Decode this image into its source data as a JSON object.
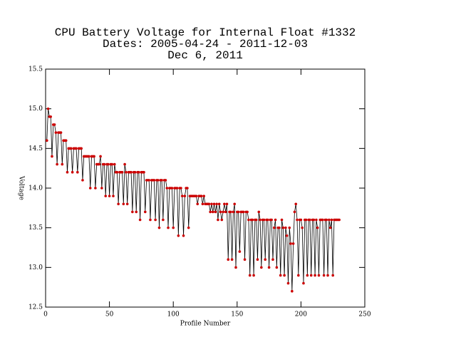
{
  "chart_data": {
    "type": "line",
    "title": [
      "CPU Battery Voltage for Internal Float #1332",
      "Dates:  2005-04-24 -  2011-12-03",
      "Dec  6, 2011"
    ],
    "x_label": "Profile Number",
    "y_label": "Voltage",
    "xlim": [
      0,
      250
    ],
    "xticks": [
      0,
      50,
      100,
      150,
      200,
      250
    ],
    "ylim": [
      12.5,
      15.5
    ],
    "yticks": [
      12.5,
      {
        "value": 13,
        "label": "13.0"
      },
      13.5,
      {
        "value": 14,
        "label": "14.0"
      },
      14.5,
      {
        "value": 15,
        "label": "15.0"
      },
      15.5
    ],
    "series": [
      {
        "name": "Voltage",
        "color": "#000000",
        "marker_color": "#cc0000",
        "x": [
          1,
          2,
          3,
          4,
          5,
          6,
          7,
          8,
          9,
          10,
          11,
          12,
          13,
          14,
          15,
          16,
          17,
          18,
          19,
          20,
          21,
          22,
          23,
          24,
          25,
          26,
          27,
          28,
          29,
          30,
          31,
          32,
          33,
          34,
          35,
          36,
          37,
          38,
          39,
          40,
          41,
          42,
          43,
          44,
          45,
          46,
          47,
          48,
          49,
          50,
          51,
          52,
          53,
          54,
          55,
          56,
          57,
          58,
          59,
          60,
          61,
          62,
          63,
          64,
          65,
          66,
          67,
          68,
          69,
          70,
          71,
          72,
          73,
          74,
          75,
          76,
          77,
          78,
          79,
          80,
          81,
          82,
          83,
          84,
          85,
          86,
          87,
          88,
          89,
          90,
          91,
          92,
          93,
          94,
          95,
          96,
          97,
          98,
          99,
          100,
          101,
          102,
          103,
          104,
          105,
          106,
          107,
          108,
          109,
          110,
          111,
          112,
          113,
          114,
          115,
          116,
          117,
          118,
          119,
          120,
          121,
          122,
          123,
          124,
          125,
          126,
          127,
          128,
          129,
          130,
          131,
          132,
          133,
          134,
          135,
          136,
          137,
          138,
          139,
          140,
          141,
          142,
          143,
          144,
          145,
          146,
          147,
          148,
          149,
          150,
          151,
          152,
          153,
          154,
          155,
          156,
          157,
          158,
          159,
          160,
          161,
          162,
          163,
          164,
          165,
          166,
          167,
          168,
          169,
          170,
          171,
          172,
          173,
          174,
          175,
          176,
          177,
          178,
          179,
          180,
          181,
          182,
          183,
          184,
          185,
          186,
          187,
          188,
          189,
          190,
          191,
          192,
          193,
          194,
          195,
          196,
          197,
          198,
          199,
          200,
          201,
          202,
          203,
          204,
          205,
          206,
          207,
          208,
          209,
          210,
          211,
          212,
          213,
          214,
          215,
          216,
          217,
          218,
          219,
          220,
          221,
          222,
          223,
          224,
          225,
          226,
          227,
          228,
          229,
          230
        ],
        "values": [
          14.6,
          15.0,
          14.9,
          14.9,
          14.4,
          14.8,
          14.8,
          14.7,
          14.3,
          14.7,
          14.7,
          14.7,
          14.3,
          14.6,
          14.6,
          14.6,
          14.2,
          14.5,
          14.5,
          14.5,
          14.2,
          14.5,
          14.5,
          14.5,
          14.2,
          14.5,
          14.5,
          14.5,
          14.1,
          14.4,
          14.4,
          14.4,
          14.4,
          14.4,
          14.0,
          14.4,
          14.4,
          14.4,
          14.0,
          14.3,
          14.3,
          14.3,
          14.4,
          14.0,
          14.3,
          14.3,
          13.9,
          14.3,
          14.3,
          13.9,
          14.3,
          14.3,
          13.9,
          14.3,
          14.2,
          14.2,
          13.8,
          14.2,
          14.2,
          14.2,
          13.8,
          14.3,
          14.2,
          13.8,
          14.2,
          14.2,
          14.2,
          13.7,
          14.2,
          14.2,
          13.7,
          14.2,
          14.2,
          13.6,
          14.2,
          14.2,
          14.2,
          13.7,
          14.1,
          14.1,
          14.1,
          13.6,
          14.1,
          14.1,
          14.1,
          13.6,
          14.1,
          14.1,
          13.5,
          14.1,
          14.1,
          13.6,
          14.1,
          14.1,
          14.0,
          13.5,
          14.0,
          14.0,
          14.0,
          13.5,
          14.0,
          14.0,
          14.0,
          13.4,
          14.0,
          14.0,
          13.9,
          13.4,
          13.9,
          14.0,
          14.0,
          13.5,
          13.9,
          13.9,
          13.9,
          13.9,
          13.9,
          13.9,
          13.8,
          13.9,
          13.9,
          13.9,
          13.8,
          13.9,
          13.8,
          13.8,
          13.8,
          13.8,
          13.7,
          13.8,
          13.7,
          13.8,
          13.7,
          13.8,
          13.6,
          13.8,
          13.7,
          13.6,
          13.7,
          13.8,
          13.7,
          13.8,
          13.1,
          13.7,
          13.7,
          13.1,
          13.7,
          13.8,
          13.0,
          13.7,
          13.7,
          13.2,
          13.7,
          13.7,
          13.7,
          13.1,
          13.7,
          13.7,
          13.6,
          12.9,
          13.6,
          13.6,
          12.9,
          13.6,
          13.6,
          13.1,
          13.7,
          13.6,
          13.0,
          13.6,
          13.6,
          13.1,
          13.6,
          13.6,
          13.0,
          13.6,
          13.6,
          13.1,
          13.5,
          13.6,
          13.0,
          13.5,
          13.5,
          12.9,
          13.6,
          13.5,
          12.9,
          13.5,
          13.4,
          12.8,
          13.5,
          13.3,
          12.7,
          13.3,
          13.7,
          13.8,
          13.6,
          12.9,
          13.6,
          13.6,
          13.5,
          12.8,
          13.6,
          13.6,
          12.9,
          13.6,
          13.6,
          12.9,
          13.6,
          13.6,
          12.9,
          13.6,
          13.5,
          12.9,
          13.6,
          13.6,
          13.6,
          12.9,
          13.6,
          13.6,
          12.9,
          13.6,
          13.5,
          13.6,
          12.9,
          13.6,
          13.6,
          13.6,
          13.6,
          13.6
        ]
      }
    ]
  }
}
